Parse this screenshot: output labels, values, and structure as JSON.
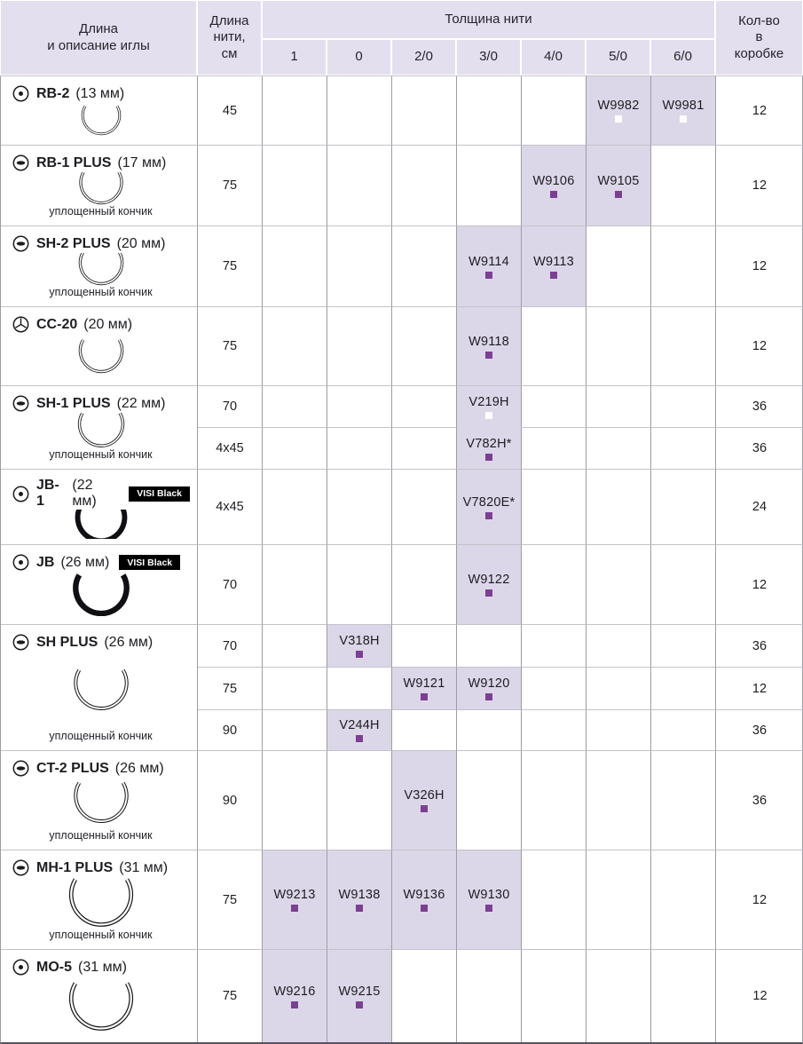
{
  "colors": {
    "header_bg": "#e4dfee",
    "highlight_bg": "#dcd7e8",
    "marker_purple": "#7b4092",
    "marker_white": "#ffffff",
    "grid_v": "#9e9ba3",
    "grid_h": "#c4c2c8",
    "text": "#1d1c21"
  },
  "header": {
    "needle_col": "Длина\nи описание иглы",
    "length_col": "Длина\nнити,\nсм",
    "thickness_col": "Толщина нити",
    "sizes": [
      "1",
      "0",
      "2/0",
      "3/0",
      "4/0",
      "5/0",
      "6/0"
    ],
    "qty_col": "Кол-во\nв\nкоробке"
  },
  "labels": {
    "flattened_tip": "уплощенный кончик",
    "visi_black": "VISI Black"
  },
  "rows": [
    {
      "name": "RB-2",
      "size_label": "(13 мм)",
      "tip": "dot",
      "needle": "outline",
      "arc_w": 58,
      "flattened_tip": false,
      "visi_black": false,
      "subrows": [
        {
          "length": "45",
          "qty": "12",
          "cells": [
            {
              "col": "5/0",
              "code": "W9982",
              "marker": "white"
            },
            {
              "col": "6/0",
              "code": "W9981",
              "marker": "white"
            }
          ]
        }
      ]
    },
    {
      "name": "RB-1 PLUS",
      "size_label": "(17 мм)",
      "tip": "flat",
      "needle": "outline",
      "arc_w": 64,
      "flattened_tip": true,
      "visi_black": false,
      "subrows": [
        {
          "length": "75",
          "qty": "12",
          "cells": [
            {
              "col": "4/0",
              "code": "W9106",
              "marker": "purple"
            },
            {
              "col": "5/0",
              "code": "W9105",
              "marker": "purple"
            }
          ]
        }
      ]
    },
    {
      "name": "SH-2 PLUS",
      "size_label": "(20 мм)",
      "tip": "flat",
      "needle": "outline",
      "arc_w": 66,
      "flattened_tip": true,
      "visi_black": false,
      "subrows": [
        {
          "length": "75",
          "qty": "12",
          "cells": [
            {
              "col": "3/0",
              "code": "W9114",
              "marker": "purple"
            },
            {
              "col": "4/0",
              "code": "W9113",
              "marker": "purple"
            }
          ]
        }
      ]
    },
    {
      "name": "CC-20",
      "size_label": "(20 мм)",
      "tip": "trocar",
      "needle": "outline",
      "arc_w": 66,
      "flattened_tip": false,
      "visi_black": false,
      "subrows": [
        {
          "length": "75",
          "qty": "12",
          "cells": [
            {
              "col": "3/0",
              "code": "W9118",
              "marker": "purple"
            }
          ]
        }
      ]
    },
    {
      "name": "SH-1 PLUS",
      "size_label": "(22 мм)",
      "tip": "flat",
      "needle": "outline",
      "arc_w": 68,
      "flattened_tip": true,
      "visi_black": false,
      "subrows": [
        {
          "length": "70",
          "qty": "36",
          "cells": [
            {
              "col": "3/0",
              "code": "V219H",
              "marker": "white",
              "merge_down": true
            }
          ]
        },
        {
          "length": "4x45",
          "qty": "36",
          "cells": [
            {
              "col": "3/0",
              "code": "V782H*",
              "marker": "purple"
            }
          ]
        }
      ]
    },
    {
      "name": "JB-1",
      "size_label": "(22 мм)",
      "tip": "dot",
      "needle": "filled",
      "arc_w": 74,
      "flattened_tip": false,
      "visi_black": true,
      "subrows": [
        {
          "length": "4x45",
          "qty": "24",
          "cells": [
            {
              "col": "3/0",
              "code": "V7820E*",
              "marker": "purple"
            }
          ]
        }
      ]
    },
    {
      "name": "JB",
      "size_label": "(26 мм)",
      "tip": "dot",
      "needle": "filled",
      "arc_w": 80,
      "flattened_tip": false,
      "visi_black": true,
      "subrows": [
        {
          "length": "70",
          "qty": "12",
          "cells": [
            {
              "col": "3/0",
              "code": "W9122",
              "marker": "purple"
            }
          ]
        }
      ]
    },
    {
      "name": "SH PLUS",
      "size_label": "(26 мм)",
      "tip": "flat",
      "needle": "outline",
      "arc_w": 80,
      "flattened_tip": true,
      "visi_black": false,
      "subrows": [
        {
          "length": "70",
          "qty": "36",
          "cells": [
            {
              "col": "0",
              "code": "V318H",
              "marker": "purple"
            }
          ]
        },
        {
          "length": "75",
          "qty": "12",
          "cells": [
            {
              "col": "2/0",
              "code": "W9121",
              "marker": "purple"
            },
            {
              "col": "3/0",
              "code": "W9120",
              "marker": "purple"
            }
          ]
        },
        {
          "length": "90",
          "qty": "36",
          "cells": [
            {
              "col": "0",
              "code": "V244H",
              "marker": "purple"
            }
          ]
        }
      ]
    },
    {
      "name": "CT-2 PLUS",
      "size_label": "(26 мм)",
      "tip": "flat",
      "needle": "outline",
      "arc_w": 80,
      "flattened_tip": true,
      "visi_black": false,
      "subrows": [
        {
          "length": "90",
          "qty": "36",
          "cells": [
            {
              "col": "2/0",
              "code": "V326H",
              "marker": "purple"
            }
          ]
        }
      ]
    },
    {
      "name": "MH-1 PLUS",
      "size_label": "(31 мм)",
      "tip": "flat",
      "needle": "outline",
      "arc_w": 94,
      "flattened_tip": true,
      "visi_black": false,
      "subrows": [
        {
          "length": "75",
          "qty": "12",
          "cells": [
            {
              "col": "1",
              "code": "W9213",
              "marker": "purple"
            },
            {
              "col": "0",
              "code": "W9138",
              "marker": "purple"
            },
            {
              "col": "2/0",
              "code": "W9136",
              "marker": "purple"
            },
            {
              "col": "3/0",
              "code": "W9130",
              "marker": "purple"
            }
          ]
        }
      ]
    },
    {
      "name": "MO-5",
      "size_label": "(31 мм)",
      "tip": "dot",
      "needle": "outline",
      "arc_w": 94,
      "flattened_tip": false,
      "visi_black": false,
      "subrows": [
        {
          "length": "75",
          "qty": "12",
          "cells": [
            {
              "col": "1",
              "code": "W9216",
              "marker": "purple"
            },
            {
              "col": "0",
              "code": "W9215",
              "marker": "purple"
            }
          ]
        }
      ]
    }
  ]
}
